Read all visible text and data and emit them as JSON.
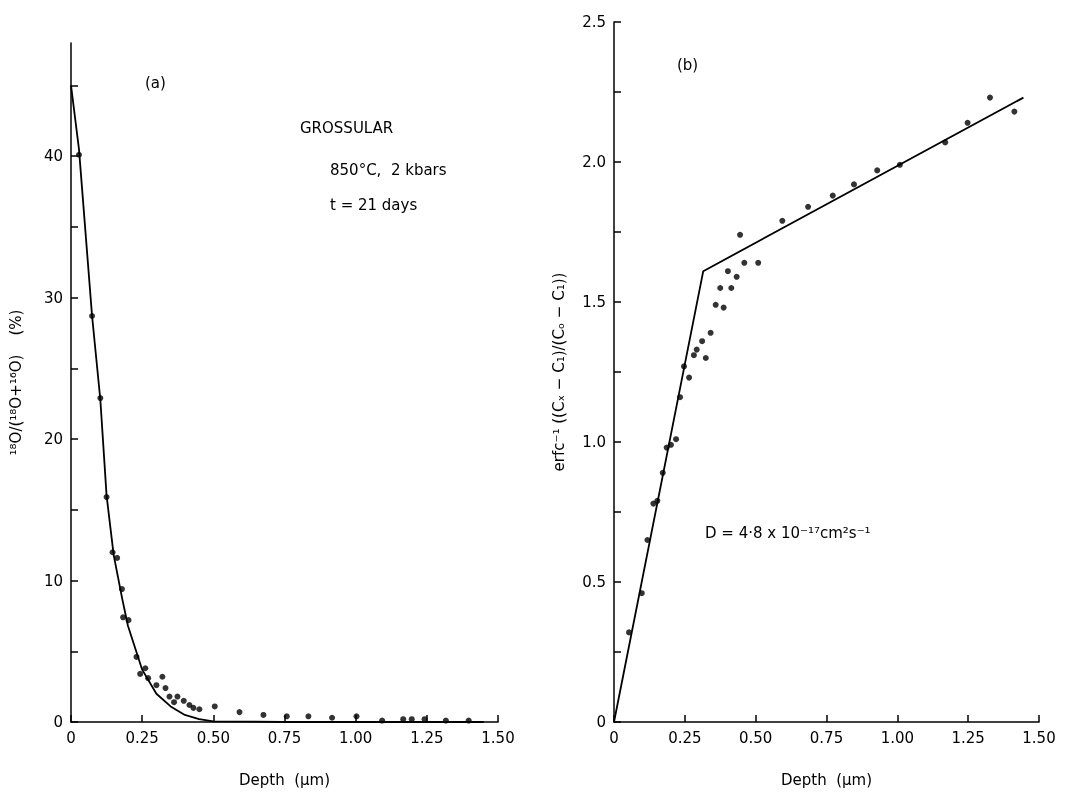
{
  "chart_data": [
    {
      "type": "scatter",
      "title": "(a)",
      "xlabel": "Depth  (μm)",
      "ylabel": "¹⁸O/(¹⁸O+¹⁶O)    (%)",
      "annotations": [
        "GROSSULAR",
        "850°C,  2 kbars",
        "t = 21 days"
      ],
      "xlim": [
        0,
        1.5
      ],
      "xticks": [
        0,
        0.25,
        {
          "value": 0.5,
          "label": "0.50"
        },
        0.75,
        {
          "value": 1.0,
          "label": "1.00"
        },
        1.25,
        {
          "value": 1.5,
          "label": "1.50"
        }
      ],
      "ylim": [
        0,
        48
      ],
      "yticks": [
        0,
        {
          "value": 5,
          "label": null
        },
        10,
        {
          "value": 15,
          "label": null
        },
        20,
        {
          "value": 25,
          "label": null
        },
        30,
        {
          "value": 35,
          "label": null
        },
        40,
        {
          "value": 45,
          "label": null
        }
      ],
      "grid": false,
      "marker": "circle",
      "series": [
        {
          "color": "#000000",
          "x": [
            0.028,
            0.074,
            0.103,
            0.125,
            0.146,
            0.162,
            0.179,
            0.183,
            0.202,
            0.23,
            0.243,
            0.261,
            0.271,
            0.3,
            0.321,
            0.332,
            0.346,
            0.362,
            0.374,
            0.396,
            0.416,
            0.43,
            0.451,
            0.505,
            0.592,
            0.676,
            0.758,
            0.834,
            0.917,
            1.003,
            1.093,
            1.167,
            1.197,
            1.242,
            1.317,
            1.397
          ],
          "values": [
            40.1,
            28.7,
            22.9,
            15.9,
            12.0,
            11.6,
            9.4,
            7.4,
            7.2,
            4.6,
            3.4,
            3.8,
            3.1,
            2.6,
            3.2,
            2.4,
            1.8,
            1.4,
            1.8,
            1.5,
            1.2,
            1.0,
            0.9,
            1.1,
            0.7,
            0.5,
            0.4,
            0.4,
            0.3,
            0.4,
            0.1,
            0.2,
            0.2,
            0.2,
            0.1,
            0.1
          ]
        },
        {
          "type": "line",
          "color": "#000000",
          "marker": "none",
          "x": [
            0.0,
            0.028,
            0.074,
            0.103,
            0.125,
            0.15,
            0.18,
            0.2,
            0.25,
            0.3,
            0.35,
            0.4,
            0.45,
            0.5,
            0.75,
            1.0,
            1.25,
            1.45
          ],
          "values": [
            45,
            40.5,
            28.7,
            22.8,
            16,
            11.8,
            8.7,
            6.8,
            3.7,
            2.0,
            1.1,
            0.5,
            0.2,
            0.05,
            0,
            0,
            0,
            0
          ]
        }
      ]
    },
    {
      "type": "scatter",
      "title": "(b)",
      "xlabel": "Depth  (μm)",
      "ylabel": "erfc⁻¹ ((Cₓ − C₁)/(Cₒ − C₁))",
      "annotations": [
        "D = 4·8 x 10⁻¹⁷cm²s⁻¹"
      ],
      "xlim": [
        0,
        1.5
      ],
      "xticks": [
        0,
        0.25,
        {
          "value": 0.5,
          "label": "0.50"
        },
        0.75,
        {
          "value": 1.0,
          "label": "1.00"
        },
        1.25,
        {
          "value": 1.5,
          "label": "1.50"
        }
      ],
      "ylim": [
        0,
        2.5
      ],
      "yticks": [
        0,
        {
          "value": 0.25,
          "label": null
        },
        0.5,
        {
          "value": 0.75,
          "label": null
        },
        {
          "value": 1.0,
          "label": "1.0"
        },
        {
          "value": 1.25,
          "label": null
        },
        1.5,
        {
          "value": 1.75,
          "label": null
        },
        {
          "value": 2.0,
          "label": "2.0"
        },
        {
          "value": 2.25,
          "label": null
        },
        2.5
      ],
      "grid": false,
      "marker": "circle",
      "series": [
        {
          "color": "#000000",
          "x": [
            0.053,
            0.098,
            0.118,
            0.139,
            0.153,
            0.172,
            0.186,
            0.201,
            0.219,
            0.233,
            0.247,
            0.265,
            0.282,
            0.292,
            0.311,
            0.324,
            0.341,
            0.359,
            0.375,
            0.387,
            0.402,
            0.414,
            0.433,
            0.445,
            0.46,
            0.509,
            0.594,
            0.685,
            0.772,
            0.847,
            0.929,
            1.009,
            1.169,
            1.248,
            1.327,
            1.413
          ],
          "values": [
            0.32,
            0.46,
            0.65,
            0.78,
            0.79,
            0.89,
            0.98,
            0.99,
            1.01,
            1.16,
            1.27,
            1.23,
            1.31,
            1.33,
            1.36,
            1.3,
            1.39,
            1.49,
            1.55,
            1.48,
            1.61,
            1.55,
            1.59,
            1.74,
            1.64,
            1.64,
            1.79,
            1.84,
            1.88,
            1.92,
            1.97,
            1.99,
            2.07,
            2.14,
            2.23,
            2.18
          ]
        },
        {
          "type": "line",
          "color": "#000000",
          "marker": "none",
          "x": [
            0,
            0.315,
            1.445
          ],
          "values": [
            0,
            1.61,
            2.23
          ]
        }
      ]
    }
  ]
}
